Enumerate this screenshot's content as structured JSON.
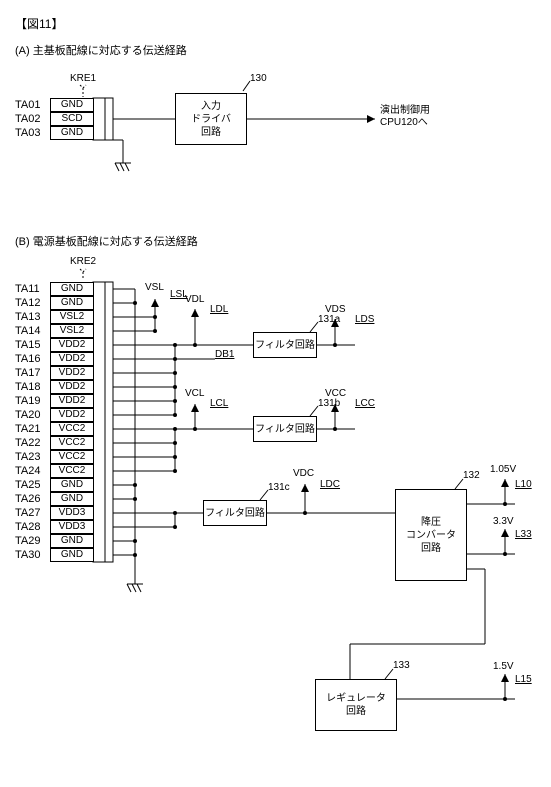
{
  "fig_title": "【図11】",
  "section_a_title": "(A) 主基板配線に対応する伝送経路",
  "section_b_title": "(B) 電源基板配線に対応する伝送経路",
  "kre1_label": "KRE1",
  "kre2_label": "KRE2",
  "driver_ref": "130",
  "driver_text": "入力\nドライバ\n回路",
  "driver_output": "演出制御用\nCPU120へ",
  "pins_a": [
    {
      "name": "TA01",
      "sig": "GND"
    },
    {
      "name": "TA02",
      "sig": "SCD"
    },
    {
      "name": "TA03",
      "sig": "GND"
    }
  ],
  "pins_b": [
    {
      "name": "TA11",
      "sig": "GND"
    },
    {
      "name": "TA12",
      "sig": "GND"
    },
    {
      "name": "TA13",
      "sig": "VSL2"
    },
    {
      "name": "TA14",
      "sig": "VSL2"
    },
    {
      "name": "TA15",
      "sig": "VDD2"
    },
    {
      "name": "TA16",
      "sig": "VDD2"
    },
    {
      "name": "TA17",
      "sig": "VDD2"
    },
    {
      "name": "TA18",
      "sig": "VDD2"
    },
    {
      "name": "TA19",
      "sig": "VDD2"
    },
    {
      "name": "TA20",
      "sig": "VDD2"
    },
    {
      "name": "TA21",
      "sig": "VCC2"
    },
    {
      "name": "TA22",
      "sig": "VCC2"
    },
    {
      "name": "TA23",
      "sig": "VCC2"
    },
    {
      "name": "TA24",
      "sig": "VCC2"
    },
    {
      "name": "TA25",
      "sig": "GND"
    },
    {
      "name": "TA26",
      "sig": "GND"
    },
    {
      "name": "TA27",
      "sig": "VDD3"
    },
    {
      "name": "TA28",
      "sig": "VDD3"
    },
    {
      "name": "TA29",
      "sig": "GND"
    },
    {
      "name": "TA30",
      "sig": "GND"
    }
  ],
  "signals": {
    "vsl": "VSL",
    "lsl": "LSL",
    "vdl": "VDL",
    "ldl": "LDL",
    "vds": "VDS",
    "lds": "LDS",
    "db1": "DB1",
    "vcl": "VCL",
    "lcl": "LCL",
    "vcc": "VCC",
    "lcc": "LCC",
    "vdc": "VDC",
    "ldc": "LDC"
  },
  "filter_text": "フィルタ回路",
  "filter_refs": {
    "a": "131a",
    "b": "131b",
    "c": "131c"
  },
  "stepdown": {
    "ref": "132",
    "text": "降圧\nコンバータ\n回路"
  },
  "reg": {
    "ref": "133",
    "text": "レギュレータ\n回路"
  },
  "outs": {
    "v105": "1.05V",
    "l10": "L10",
    "v33": "3.3V",
    "l33": "L33",
    "v15": "1.5V",
    "l15": "L15"
  }
}
